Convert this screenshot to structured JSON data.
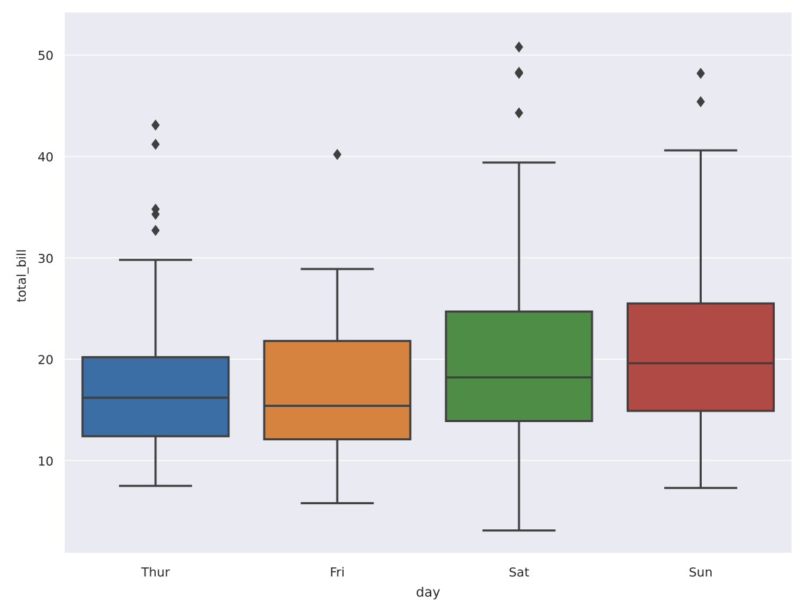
{
  "chart_data": {
    "type": "box",
    "title": "",
    "xlabel": "day",
    "ylabel": "total_bill",
    "ylim": [
      0.9,
      54.2
    ],
    "yticks": [
      10,
      20,
      30,
      40,
      50
    ],
    "grid": true,
    "colors": {
      "plot_background": "#eaeaf2",
      "grid": "#ffffff",
      "box_edge": "#3f3f3f"
    },
    "categories": [
      "Thur",
      "Fri",
      "Sat",
      "Sun"
    ],
    "boxes": [
      {
        "category": "Thur",
        "color": "#3a6ea5",
        "whisker_low": 7.5,
        "q1": 12.4,
        "median": 16.2,
        "q3": 20.2,
        "whisker_high": 29.8,
        "outliers": [
          32.7,
          34.3,
          34.8,
          41.2,
          43.1
        ]
      },
      {
        "category": "Fri",
        "color": "#d6833f",
        "whisker_low": 5.8,
        "q1": 12.1,
        "median": 15.4,
        "q3": 21.8,
        "whisker_high": 28.9,
        "outliers": [
          40.2
        ]
      },
      {
        "category": "Sat",
        "color": "#4e8d45",
        "whisker_low": 3.1,
        "q1": 13.9,
        "median": 18.2,
        "q3": 24.7,
        "whisker_high": 39.4,
        "outliers": [
          44.3,
          48.2,
          48.3,
          50.8
        ]
      },
      {
        "category": "Sun",
        "color": "#b04a45",
        "whisker_low": 7.3,
        "q1": 14.9,
        "median": 19.6,
        "q3": 25.5,
        "whisker_high": 40.6,
        "outliers": [
          45.4,
          48.2
        ]
      }
    ]
  }
}
